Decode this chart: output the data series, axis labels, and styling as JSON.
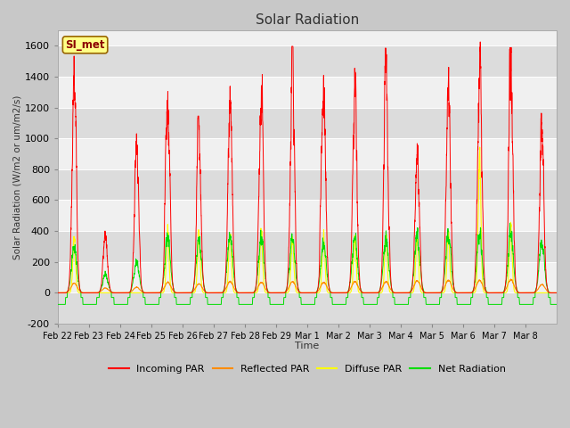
{
  "title": "Solar Radiation",
  "xlabel": "Time",
  "ylabel": "Solar Radiation (W/m2 or um/m2/s)",
  "ylim": [
    -200,
    1700
  ],
  "yticks": [
    -200,
    0,
    200,
    400,
    600,
    800,
    1000,
    1200,
    1400,
    1600
  ],
  "station_label": "SI_met",
  "colors": {
    "incoming": "#ff0000",
    "reflected": "#ff8c00",
    "diffuse": "#ffff00",
    "net": "#00dd00"
  },
  "legend_labels": [
    "Incoming PAR",
    "Reflected PAR",
    "Diffuse PAR",
    "Net Radiation"
  ],
  "fig_bg": "#c8c8c8",
  "plot_bg": "#f0f0f0",
  "band_colors": [
    "#e0e0e0",
    "#f0f0f0"
  ],
  "x_tick_labels": [
    "Feb 22",
    "Feb 23",
    "Feb 24",
    "Feb 25",
    "Feb 26",
    "Feb 27",
    "Feb 28",
    "Feb 29",
    "Mar 1",
    "Mar 2",
    "Mar 3",
    "Mar 4",
    "Mar 5",
    "Mar 6",
    "Mar 7",
    "Mar 8"
  ],
  "incoming_peaks": [
    1500,
    430,
    1050,
    1390,
    1090,
    1460,
    1410,
    1520,
    1520,
    1480,
    1510,
    1020,
    1560,
    1560,
    1600,
    1180
  ],
  "diffuse_peaks": [
    400,
    200,
    100,
    470,
    430,
    460,
    460,
    430,
    430,
    430,
    420,
    430,
    450,
    1000,
    500,
    200
  ],
  "reflected_peaks": [
    70,
    35,
    40,
    75,
    65,
    80,
    75,
    80,
    75,
    80,
    80,
    85,
    90,
    90,
    95,
    60
  ],
  "net_day_peaks": [
    380,
    150,
    250,
    450,
    420,
    460,
    450,
    430,
    410,
    440,
    430,
    450,
    480,
    480,
    490,
    400
  ],
  "net_night": -75,
  "n_days": 16
}
